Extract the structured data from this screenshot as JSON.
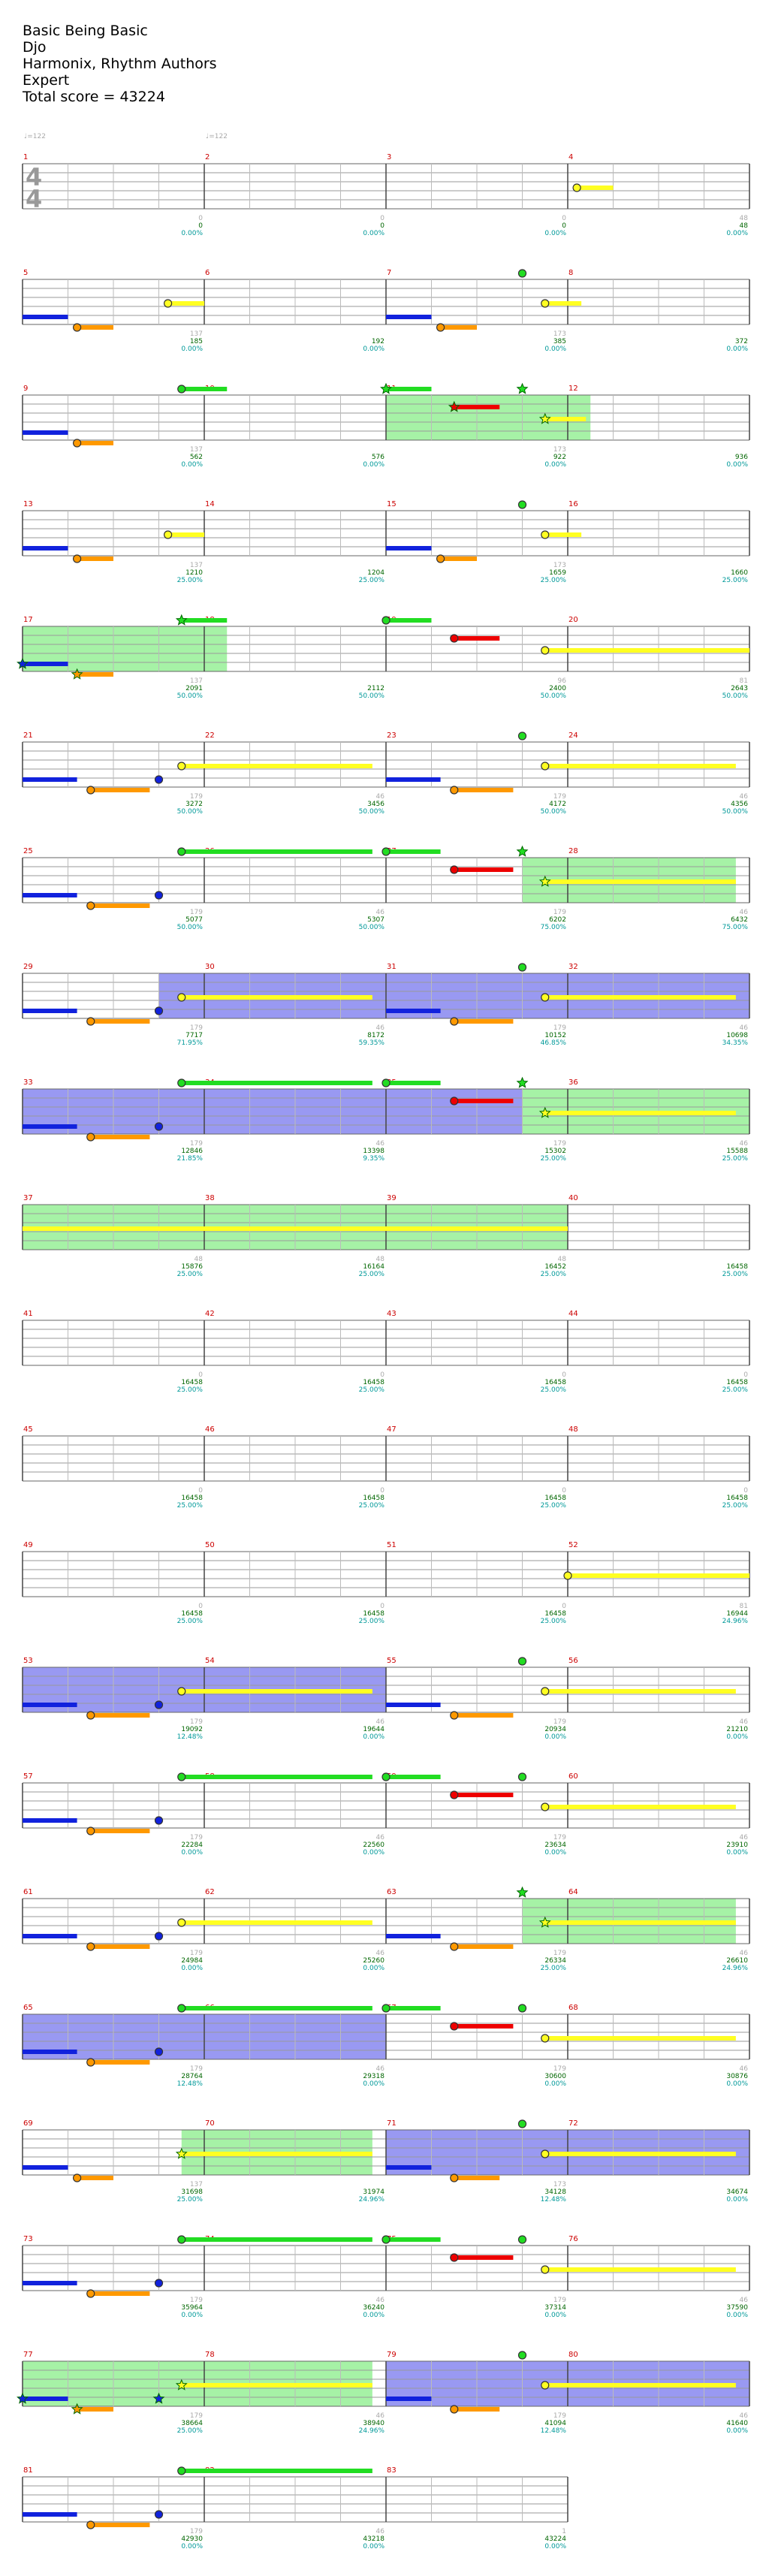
{
  "song": {
    "title": "Basic Being Basic",
    "artist": "Djo",
    "charter": "Harmonix, Rhythm Authors",
    "difficulty": "Expert",
    "total_score_text": "Total score = 43224"
  },
  "tempo_markers": [
    {
      "measure": 1,
      "beat": 0,
      "label": "♩=122"
    },
    {
      "measure": 2,
      "beat": 0,
      "label": "♩=122"
    }
  ],
  "time_signature": {
    "num": "4",
    "den": "4"
  },
  "colors": {
    "staff": "#999999",
    "barline": "#444444",
    "measure_num": "#cc0000",
    "green": "#22dd22",
    "red": "#ee0000",
    "yellow": "#ffff22",
    "blue": "#1122dd",
    "orange": "#ff9900",
    "overdrive_fill": "#88ee88",
    "solo_fill": "#7777ee",
    "star_ring": "#006600",
    "score_green": "#006600",
    "score_teal": "#009999",
    "score_grey": "#aaaaaa"
  },
  "chart_data": {
    "type": "table",
    "note": "Rock Band drum path chart; 4 measures per row; lanes top→bottom: kick, red, yellow, blue, green(top)",
    "measures_per_row": 4,
    "rows": [
      {
        "row": 0,
        "measures": [
          1,
          2,
          3,
          4
        ],
        "seg_small": [
          "0",
          "0",
          "0",
          "48"
        ],
        "seg_score": [
          "0",
          "0",
          "0",
          "48"
        ],
        "seg_pct": [
          "0.00%",
          "0.00%",
          "0.00%",
          "0.00%"
        ]
      },
      {
        "row": 1,
        "measures": [
          5,
          6,
          7,
          8
        ],
        "seg_small": [
          "137",
          "",
          "173",
          ""
        ],
        "seg_score": [
          "185",
          "192",
          "385",
          "372"
        ],
        "seg_pct": [
          "0.00%",
          "0.00%",
          "0.00%",
          "0.00%"
        ]
      },
      {
        "row": 2,
        "measures": [
          9,
          10,
          11,
          12
        ],
        "seg_small": [
          "137",
          "",
          "173",
          ""
        ],
        "seg_score": [
          "562",
          "576",
          "922",
          "936"
        ],
        "seg_pct": [
          "0.00%",
          "0.00%",
          "0.00%",
          "0.00%"
        ]
      },
      {
        "row": 3,
        "measures": [
          13,
          14,
          15,
          16
        ],
        "seg_small": [
          "137",
          "",
          "173",
          ""
        ],
        "seg_score": [
          "1210",
          "1204",
          "1659",
          "1660"
        ],
        "seg_pct": [
          "25.00%",
          "25.00%",
          "25.00%",
          "25.00%"
        ]
      },
      {
        "row": 4,
        "measures": [
          17,
          18,
          19,
          20
        ],
        "seg_small": [
          "137",
          "",
          "96",
          "81"
        ],
        "seg_score": [
          "2091",
          "2112",
          "2400",
          "2643"
        ],
        "seg_pct": [
          "50.00%",
          "50.00%",
          "50.00%",
          "50.00%"
        ]
      },
      {
        "row": 5,
        "measures": [
          21,
          22,
          23,
          24
        ],
        "seg_small": [
          "179",
          "46",
          "179",
          "46"
        ],
        "seg_score": [
          "3272",
          "3456",
          "4172",
          "4356"
        ],
        "seg_pct": [
          "50.00%",
          "50.00%",
          "50.00%",
          "50.00%"
        ]
      },
      {
        "row": 6,
        "measures": [
          25,
          26,
          27,
          28
        ],
        "seg_small": [
          "179",
          "46",
          "179",
          "46"
        ],
        "seg_score": [
          "5077",
          "5307",
          "6202",
          "6432"
        ],
        "seg_pct": [
          "50.00%",
          "50.00%",
          "75.00%",
          "75.00%"
        ]
      },
      {
        "row": 7,
        "measures": [
          29,
          30,
          31,
          32
        ],
        "seg_small": [
          "179",
          "46",
          "179",
          "46"
        ],
        "seg_score": [
          "7717",
          "8172",
          "10152",
          "10698"
        ],
        "seg_pct": [
          "71.95%",
          "59.35%",
          "46.85%",
          "34.35%"
        ]
      },
      {
        "row": 8,
        "measures": [
          33,
          34,
          35,
          36
        ],
        "seg_small": [
          "179",
          "46",
          "179",
          "46"
        ],
        "seg_score": [
          "12846",
          "13398",
          "15302",
          "15588"
        ],
        "seg_pct": [
          "21.85%",
          "9.35%",
          "25.00%",
          "25.00%"
        ]
      },
      {
        "row": 9,
        "measures": [
          37,
          38,
          39,
          40
        ],
        "seg_small": [
          "48",
          "48",
          "48",
          ""
        ],
        "seg_score": [
          "15876",
          "16164",
          "16452",
          "16458"
        ],
        "seg_pct": [
          "25.00%",
          "25.00%",
          "25.00%",
          "25.00%"
        ]
      },
      {
        "row": 10,
        "measures": [
          41,
          42,
          43,
          44
        ],
        "seg_small": [
          "0",
          "0",
          "0",
          "0"
        ],
        "seg_score": [
          "16458",
          "16458",
          "16458",
          "16458"
        ],
        "seg_pct": [
          "25.00%",
          "25.00%",
          "25.00%",
          "25.00%"
        ]
      },
      {
        "row": 11,
        "measures": [
          45,
          46,
          47,
          48
        ],
        "seg_small": [
          "0",
          "0",
          "0",
          "0"
        ],
        "seg_score": [
          "16458",
          "16458",
          "16458",
          "16458"
        ],
        "seg_pct": [
          "25.00%",
          "25.00%",
          "25.00%",
          "25.00%"
        ]
      },
      {
        "row": 12,
        "measures": [
          49,
          50,
          51,
          52
        ],
        "seg_small": [
          "0",
          "0",
          "0",
          "81"
        ],
        "seg_score": [
          "16458",
          "16458",
          "16458",
          "16944"
        ],
        "seg_pct": [
          "25.00%",
          "25.00%",
          "25.00%",
          "24.96%"
        ]
      },
      {
        "row": 13,
        "measures": [
          53,
          54,
          55,
          56
        ],
        "seg_small": [
          "179",
          "46",
          "179",
          "46"
        ],
        "seg_score": [
          "19092",
          "19644",
          "20934",
          "21210"
        ],
        "seg_pct": [
          "12.48%",
          "0.00%",
          "0.00%",
          "0.00%"
        ]
      },
      {
        "row": 14,
        "measures": [
          57,
          58,
          59,
          60
        ],
        "seg_small": [
          "179",
          "46",
          "179",
          "46"
        ],
        "seg_score": [
          "22284",
          "22560",
          "23634",
          "23910"
        ],
        "seg_pct": [
          "0.00%",
          "0.00%",
          "0.00%",
          "0.00%"
        ]
      },
      {
        "row": 15,
        "measures": [
          61,
          62,
          63,
          64
        ],
        "seg_small": [
          "179",
          "46",
          "179",
          "46"
        ],
        "seg_score": [
          "24984",
          "25260",
          "26334",
          "26610"
        ],
        "seg_pct": [
          "0.00%",
          "0.00%",
          "25.00%",
          "24.96%"
        ]
      },
      {
        "row": 16,
        "measures": [
          65,
          66,
          67,
          68
        ],
        "seg_small": [
          "179",
          "46",
          "179",
          "46"
        ],
        "seg_score": [
          "28764",
          "29318",
          "30600",
          "30876"
        ],
        "seg_pct": [
          "12.48%",
          "0.00%",
          "0.00%",
          "0.00%"
        ]
      },
      {
        "row": 17,
        "measures": [
          69,
          70,
          71,
          72
        ],
        "seg_small": [
          "137",
          "",
          "173",
          ""
        ],
        "seg_score": [
          "31698",
          "31974",
          "34128",
          "34674"
        ],
        "seg_pct": [
          "25.00%",
          "24.96%",
          "12.48%",
          "0.00%"
        ]
      },
      {
        "row": 18,
        "measures": [
          73,
          74,
          75,
          76
        ],
        "seg_small": [
          "179",
          "46",
          "179",
          "46"
        ],
        "seg_score": [
          "35964",
          "36240",
          "37314",
          "37590"
        ],
        "seg_pct": [
          "0.00%",
          "0.00%",
          "0.00%",
          "0.00%"
        ]
      },
      {
        "row": 19,
        "measures": [
          77,
          78,
          79,
          80
        ],
        "seg_small": [
          "179",
          "46",
          "179",
          "46"
        ],
        "seg_score": [
          "38664",
          "38940",
          "41094",
          "41640"
        ],
        "seg_pct": [
          "25.00%",
          "24.96%",
          "12.48%",
          "0.00%"
        ]
      },
      {
        "row": 20,
        "measures": [
          81,
          82,
          83
        ],
        "seg_small": [
          "179",
          "46",
          "1"
        ],
        "seg_score": [
          "42930",
          "43218",
          "43224"
        ],
        "seg_pct": [
          "0.00%",
          "0.00%",
          "0.00%"
        ]
      }
    ]
  }
}
